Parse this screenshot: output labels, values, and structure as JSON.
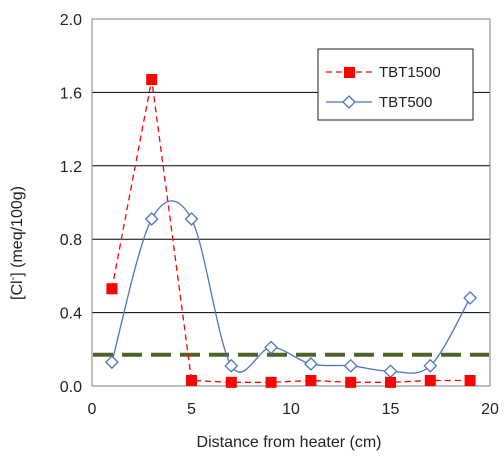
{
  "chart_data": {
    "type": "line",
    "title": "",
    "xlabel": "Distance from heater (cm)",
    "ylabel_main": "[Cl",
    "ylabel_sup": "-",
    "ylabel_rest": "] (meq/100g)",
    "xlim": [
      0,
      20
    ],
    "ylim": [
      0,
      2.0
    ],
    "xticks": [
      0,
      5,
      10,
      15,
      20
    ],
    "xtick_labels": [
      "0",
      "5",
      "10",
      "15",
      "20"
    ],
    "yticks": [
      0,
      0.4,
      0.8,
      1.2,
      1.6,
      2.0
    ],
    "ytick_labels": [
      "0.0",
      "0.4",
      "0.8",
      "1.2",
      "1.6",
      "2.0"
    ],
    "grid": "horizontal",
    "legend_position": "top-right",
    "series": [
      {
        "name": "TBT1500",
        "color": "#ff0000",
        "line_style": "dashed-straight",
        "marker": "filled-square",
        "x": [
          1,
          3,
          5,
          7,
          9,
          11,
          13,
          15,
          17,
          19
        ],
        "y": [
          0.53,
          1.67,
          0.03,
          0.02,
          0.02,
          0.03,
          0.02,
          0.02,
          0.03,
          0.03
        ]
      },
      {
        "name": "TBT500",
        "color": "#4a76c0",
        "line_style": "solid-smooth",
        "marker": "open-diamond",
        "x": [
          1,
          3,
          5,
          7,
          9,
          11,
          13,
          15,
          17,
          19
        ],
        "y": [
          0.13,
          0.91,
          0.91,
          0.11,
          0.21,
          0.12,
          0.11,
          0.08,
          0.11,
          0.48
        ]
      }
    ],
    "reference_line": {
      "y": 0.17,
      "color": "#4f6228",
      "style": "dashed"
    }
  }
}
